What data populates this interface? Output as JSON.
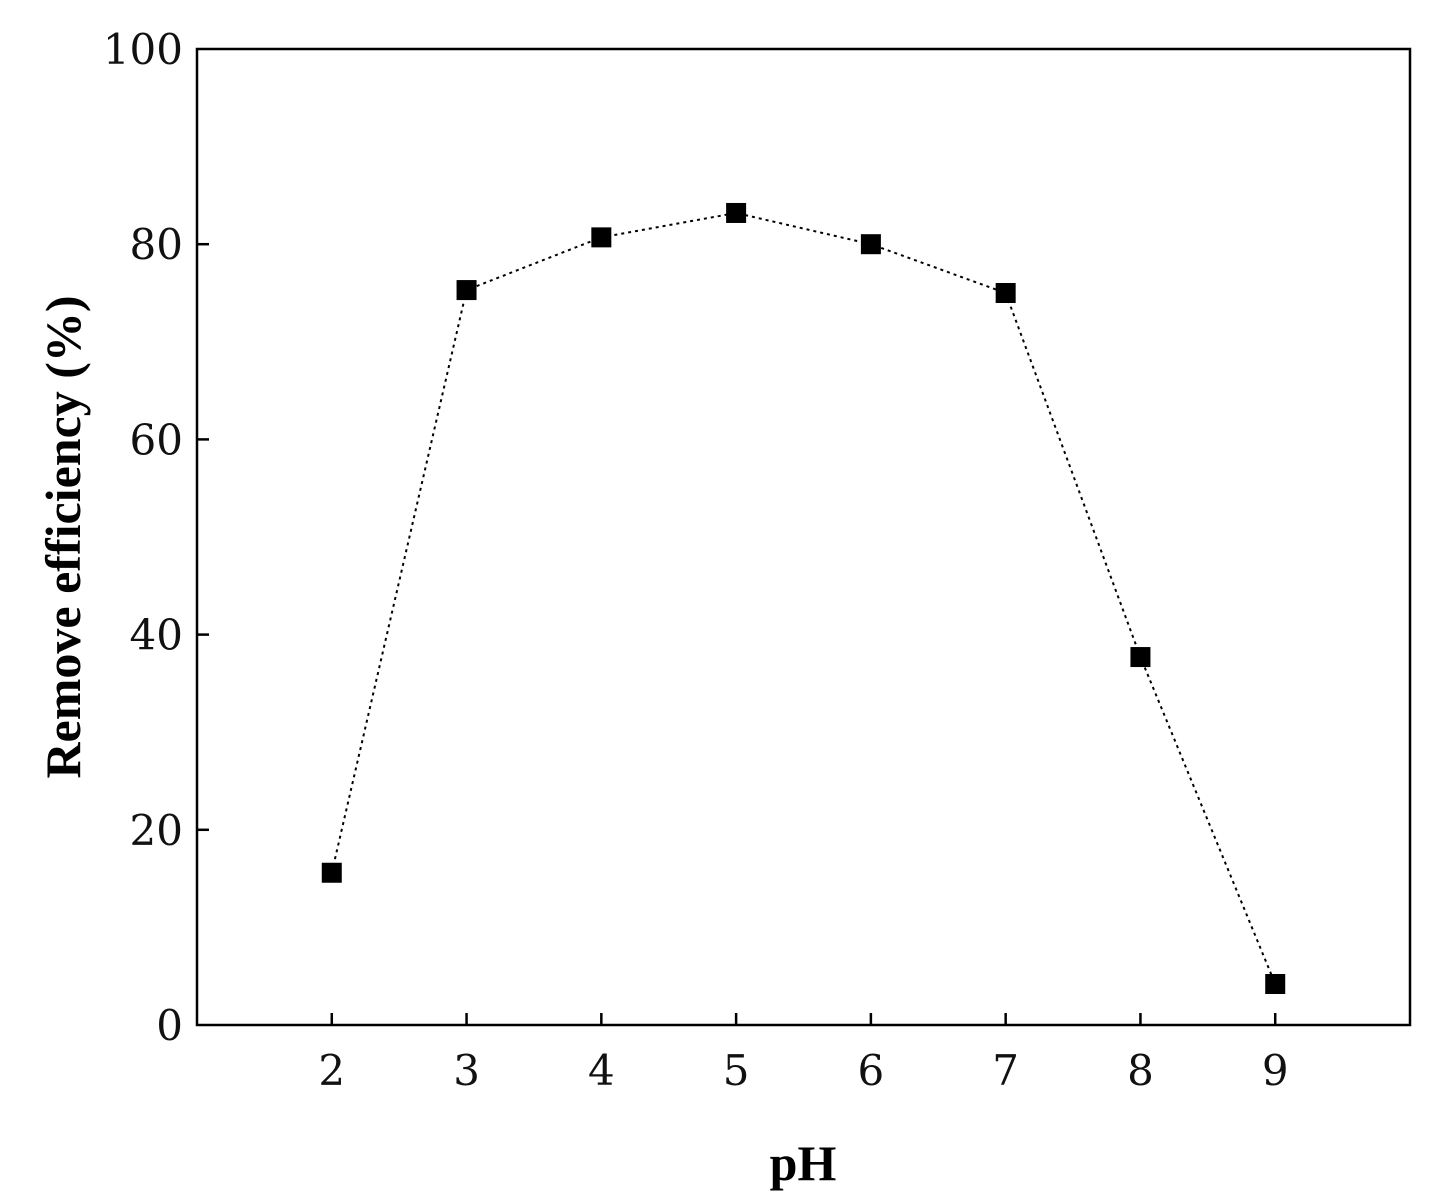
{
  "chart_data": {
    "type": "line",
    "title": "",
    "xlabel": "pH",
    "ylabel": "Remove efficiency (%)",
    "xlim": [
      1,
      10
    ],
    "ylim": [
      0,
      100
    ],
    "x_ticks": [
      2,
      3,
      4,
      5,
      6,
      7,
      8,
      9
    ],
    "y_ticks": [
      0,
      20,
      40,
      60,
      80,
      100
    ],
    "grid": false,
    "legend": "none",
    "series": [
      {
        "marker": "filled-square",
        "line_style": "dotted",
        "color": "#000000",
        "x": [
          2,
          3,
          4,
          5,
          6,
          7,
          8,
          9
        ],
        "y": [
          15.6,
          75.3,
          80.7,
          83.2,
          80.0,
          75.0,
          37.7,
          4.2
        ]
      }
    ]
  }
}
